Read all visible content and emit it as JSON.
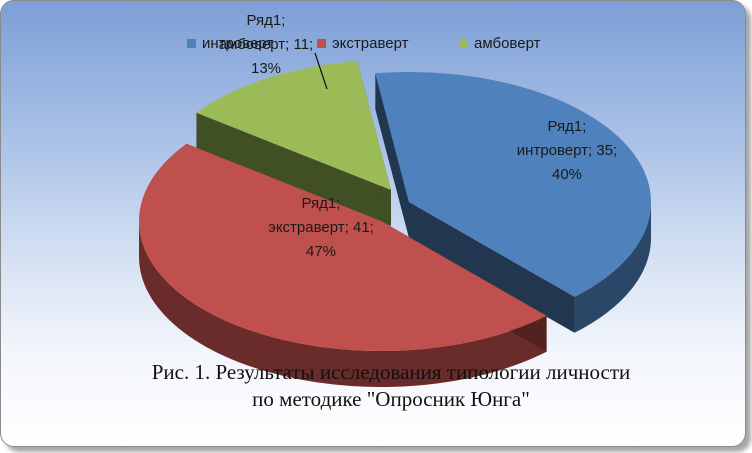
{
  "chart_data": {
    "type": "pie",
    "title": "",
    "series_name": "Ряд1",
    "categories": [
      "интроверт",
      "экстраверт",
      "амбоверт"
    ],
    "values": [
      35,
      41,
      11
    ],
    "percentages": [
      "40%",
      "47%",
      "13%"
    ],
    "colors": [
      "#4f81bd",
      "#c0504d",
      "#9bbb59"
    ],
    "legend_placement": "top",
    "exploded": true,
    "three_d": true,
    "data_labels": [
      {
        "lines": [
          "Ряд1;",
          "интроверт; 35;",
          "40%"
        ]
      },
      {
        "lines": [
          "Ряд1;",
          "экстраверт; 41;",
          "47%"
        ]
      },
      {
        "lines": [
          "Ряд1;",
          "амбоверт; 11;",
          "13%"
        ]
      }
    ]
  },
  "caption": {
    "line1": "Рис. 1. Результаты исследования типологии личности",
    "line2": "по методике \"Опросник Юнга\""
  }
}
